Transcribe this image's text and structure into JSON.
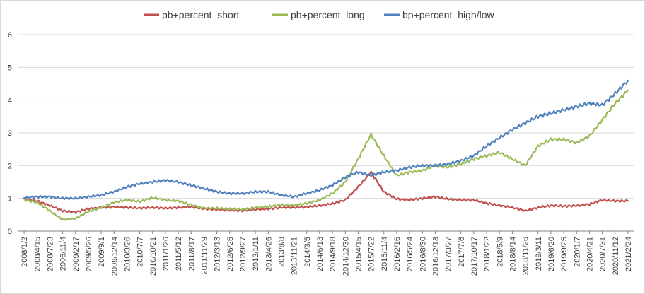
{
  "chart_data": {
    "type": "line",
    "title": "",
    "xlabel": "",
    "ylabel": "",
    "ylim": [
      0,
      6
    ],
    "y_ticks": [
      "0",
      "1",
      "2",
      "3",
      "4",
      "5",
      "6"
    ],
    "grid": "horizontal",
    "legend_position": "top",
    "categories": [
      "2008/1/2",
      "2008/4/15",
      "2008/7/23",
      "2008/11/4",
      "2009/2/17",
      "2009/5/26",
      "2009/9/1",
      "2009/12/14",
      "2010/3/26",
      "2010/7/7",
      "2010/10/21",
      "2011/1/26",
      "2011/5/12",
      "2011/8/17",
      "2011/11/29",
      "2012/3/13",
      "2012/6/25",
      "2012/9/27",
      "2013/1/11",
      "2013/4/26",
      "2013/8/8",
      "2013/11/21",
      "2014/3/5",
      "2014/6/13",
      "2014/9/18",
      "2014/12/30",
      "2015/4/15",
      "2015/7/22",
      "2015/11/4",
      "2016/2/16",
      "2016/5/24",
      "2016/8/30",
      "2016/12/13",
      "2017/3/27",
      "2017/7/6",
      "2017/10/17",
      "2018/1/22",
      "2018/5/9",
      "2018/8/14",
      "2018/11/26",
      "2019/3/11",
      "2019/6/20",
      "2019/9/25",
      "2020/1/7",
      "2020/4/21",
      "2020/7/31",
      "2020/11/12",
      "2021/2/24"
    ],
    "series": [
      {
        "name": "pb+percent_short",
        "color": "#c0504d",
        "values": [
          1.0,
          0.92,
          0.78,
          0.62,
          0.58,
          0.68,
          0.72,
          0.74,
          0.72,
          0.7,
          0.72,
          0.7,
          0.72,
          0.74,
          0.68,
          0.66,
          0.64,
          0.62,
          0.66,
          0.68,
          0.72,
          0.72,
          0.74,
          0.78,
          0.84,
          0.95,
          1.35,
          1.8,
          1.2,
          0.98,
          0.95,
          1.0,
          1.05,
          0.98,
          0.95,
          0.95,
          0.85,
          0.78,
          0.72,
          0.62,
          0.72,
          0.78,
          0.76,
          0.78,
          0.82,
          0.95,
          0.92,
          0.92
        ]
      },
      {
        "name": "pb+percent_long",
        "color": "#9bbb59",
        "values": [
          0.95,
          0.88,
          0.62,
          0.35,
          0.38,
          0.6,
          0.72,
          0.88,
          0.95,
          0.9,
          1.02,
          0.95,
          0.92,
          0.8,
          0.7,
          0.7,
          0.68,
          0.66,
          0.72,
          0.75,
          0.8,
          0.78,
          0.85,
          0.95,
          1.15,
          1.5,
          2.2,
          2.95,
          2.3,
          1.7,
          1.8,
          1.85,
          2.0,
          1.95,
          2.05,
          2.2,
          2.3,
          2.4,
          2.2,
          2.0,
          2.6,
          2.8,
          2.8,
          2.7,
          2.9,
          3.4,
          3.9,
          4.3
        ]
      },
      {
        "name": "bp+percent_high/low",
        "color": "#4f81bd",
        "values": [
          1.02,
          1.05,
          1.05,
          1.0,
          1.0,
          1.05,
          1.1,
          1.2,
          1.35,
          1.45,
          1.5,
          1.55,
          1.5,
          1.4,
          1.3,
          1.2,
          1.15,
          1.15,
          1.2,
          1.2,
          1.1,
          1.05,
          1.15,
          1.25,
          1.4,
          1.65,
          1.8,
          1.7,
          1.8,
          1.85,
          1.95,
          2.0,
          2.0,
          2.05,
          2.15,
          2.3,
          2.6,
          2.85,
          3.1,
          3.3,
          3.5,
          3.6,
          3.7,
          3.8,
          3.9,
          3.85,
          4.2,
          4.6
        ]
      }
    ]
  }
}
